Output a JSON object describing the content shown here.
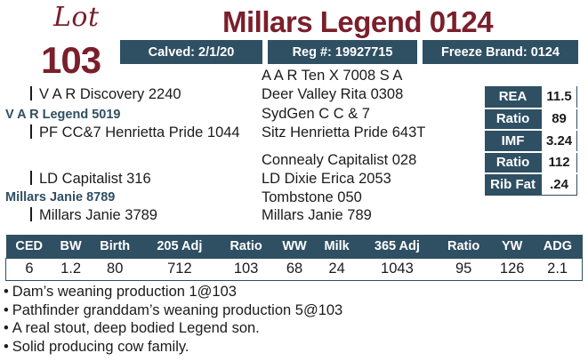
{
  "lot": {
    "script_label": "Lot",
    "number": "103"
  },
  "title": "Millars Legend 0124",
  "info": {
    "calved": "Calved: 2/1/20",
    "reg": "Reg #: 19927715",
    "freeze_brand": "Freeze Brand: 0124"
  },
  "pedigree": {
    "sire": "V A R Legend 5019",
    "sire_sire": "V A R Discovery 2240",
    "sire_dam": "PF CC&7 Henrietta Pride 1044",
    "sss": "A A R Ten X 7008 S A",
    "ssd": "Deer Valley Rita 0308",
    "sds": "SydGen C C & 7",
    "sdd": "Sitz Henrietta Pride 643T",
    "dam": "Millars Janie 8789",
    "dam_sire": "LD Capitalist 316",
    "dam_dam": "Millars Janie 3789",
    "dss": "Connealy Capitalist 028",
    "dsd": "LD Dixie Erica 2053",
    "dds": "Tombstone 050",
    "ddd": "Millars Janie 789"
  },
  "carcass": [
    {
      "label": "REA",
      "value": "11.5"
    },
    {
      "label": "Ratio",
      "value": "89"
    },
    {
      "label": "IMF",
      "value": "3.24"
    },
    {
      "label": "Ratio",
      "value": "112"
    },
    {
      "label": "Rib Fat",
      "value": ".24"
    }
  ],
  "epd": {
    "headers": [
      "CED",
      "BW",
      "Birth",
      "205 Adj",
      "Ratio",
      "WW",
      "Milk",
      "365 Adj",
      "Ratio",
      "YW",
      "ADG"
    ],
    "values": [
      "6",
      "1.2",
      "80",
      "712",
      "103",
      "68",
      "24",
      "1043",
      "95",
      "126",
      "2.1"
    ]
  },
  "notes": [
    "Dam’s weaning production 1@103",
    "Pathfinder granddam’s weaning production 5@103",
    "A real stout, deep bodied Legend son.",
    "Solid producing cow family."
  ],
  "colors": {
    "maroon": "#7a1f2b",
    "navy": "#2f4f63"
  }
}
